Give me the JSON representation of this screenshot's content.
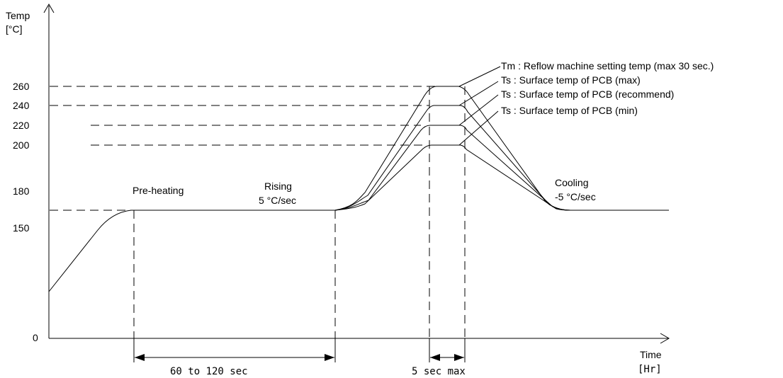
{
  "axes": {
    "y_title_1": "Temp",
    "y_title_2": "[°C]",
    "x_title_1": "Time",
    "x_title_2": "[Hr]",
    "y_ticks": [
      "260",
      "240",
      "220",
      "200",
      "180",
      "150",
      "0"
    ]
  },
  "zones": {
    "preheat": "Pre-heating",
    "rising_1": "Rising",
    "rising_2": "5 °C/sec",
    "cooling_1": "Cooling",
    "cooling_2": "-5 °C/sec"
  },
  "legend": {
    "tm": "Tm : Reflow machine setting temp (max 30 sec.)",
    "ts_max": "Ts : Surface temp of PCB (max)",
    "ts_rec": "Ts : Surface temp of PCB (recommend)",
    "ts_min": "Ts : Surface temp of PCB (min)"
  },
  "durations": {
    "preheat_time": "60 to 120 sec",
    "peak_time": "5 sec max"
  },
  "profiles": [
    {
      "peak": 260
    },
    {
      "peak": 240
    },
    {
      "peak": 220
    },
    {
      "peak": 200
    }
  ]
}
